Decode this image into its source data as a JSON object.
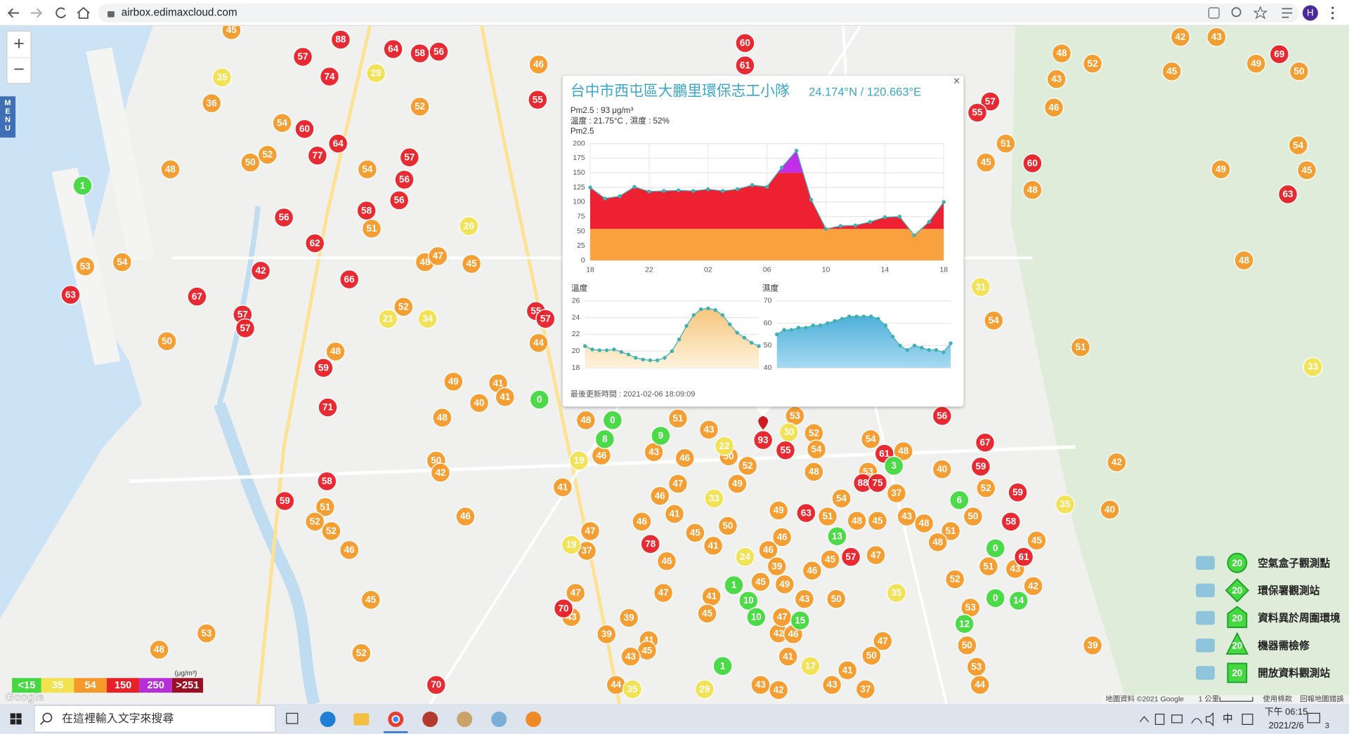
{
  "browser": {
    "url": "airbox.edimaxcloud.com",
    "profile": "H"
  },
  "map": {
    "menu": "MENU",
    "zoom_in": "+",
    "zoom_out": "−",
    "logo": "Google",
    "attribution": [
      "地圖資料 ©2021 Google",
      "1 公里",
      "使用條款",
      "回報地圖錯誤"
    ],
    "markers": [
      {
        "color": "#f59a2a",
        "values": [
          45,
          36,
          54,
          50,
          52,
          54,
          48,
          53,
          54,
          50,
          48,
          52,
          46,
          52,
          51,
          48,
          47,
          45,
          49,
          41,
          40,
          41,
          48,
          50,
          42,
          46,
          51,
          52,
          52,
          46,
          45,
          53,
          48,
          52,
          44,
          48,
          46,
          41,
          47,
          37,
          47,
          43,
          39,
          39,
          44,
          41,
          45,
          43,
          51,
          43,
          43,
          46,
          47,
          46,
          46,
          41,
          45,
          41,
          46,
          47,
          41,
          45,
          49,
          50,
          50,
          52,
          53,
          52,
          54,
          48,
          53,
          54,
          48,
          51,
          48,
          45,
          54,
          43,
          48,
          51,
          48,
          50,
          37,
          40,
          52,
          47,
          45,
          42,
          51,
          43,
          45,
          52,
          53,
          50,
          53,
          44,
          42,
          40,
          39,
          47,
          50,
          41,
          43,
          42,
          48,
          52,
          43,
          42,
          45,
          49,
          50,
          43,
          46,
          45,
          51,
          48,
          49,
          54,
          45,
          48,
          54,
          51,
          49,
          46,
          46,
          39,
          45,
          49,
          43,
          50,
          42,
          46,
          41,
          43,
          37,
          46,
          47
        ]
      },
      {
        "color": "#f2e250",
        "values": [
          35,
          29,
          26,
          21,
          34,
          19,
          19,
          24,
          33,
          22,
          30,
          31,
          35,
          33,
          35,
          29,
          17,
          35
        ]
      },
      {
        "color": "#e8202a",
        "values": [
          88,
          57,
          74,
          60,
          64,
          77,
          57,
          56,
          56,
          58,
          56,
          62,
          42,
          66,
          67,
          63,
          57,
          57,
          59,
          71,
          58,
          59,
          78,
          70,
          60,
          61,
          55,
          55,
          57,
          93,
          55,
          88,
          75,
          63,
          57,
          61,
          56,
          67,
          59,
          59,
          58,
          61,
          60,
          63,
          69,
          57,
          55,
          70,
          56,
          58,
          64
        ]
      },
      {
        "color": "#44d940",
        "values": [
          1,
          0,
          0,
          8,
          9,
          13,
          1,
          10,
          10,
          15,
          12,
          0,
          14,
          0,
          6,
          3,
          1
        ]
      }
    ]
  },
  "popup": {
    "title": "台中市西屯區大鵬里環保志工小隊",
    "coords": "24.174°N / 120.663°E",
    "pm_line": "Pm2.5 : 93 μg/m³",
    "temp_line": "溫度 : 21.75°C , 濕度 : 52%",
    "close": "×",
    "updated": "最後更新時間 : 2021-02-06 18:09:09",
    "pm_chart": {
      "type": "area",
      "label": "Pm2.5",
      "categories": [
        "18",
        null,
        null,
        null,
        "22",
        null,
        null,
        null,
        "02",
        null,
        null,
        null,
        "06",
        null,
        null,
        null,
        "10",
        null,
        null,
        null,
        "14",
        null,
        null,
        null,
        "18"
      ],
      "values": [
        125,
        106,
        110,
        126,
        118,
        119,
        120,
        119,
        122,
        119,
        122,
        129,
        126,
        159,
        188,
        104,
        54,
        59,
        60,
        66,
        74,
        75,
        43,
        66,
        100
      ],
      "ylim": [
        0,
        200
      ],
      "yticks": [
        0,
        25,
        50,
        75,
        100,
        125,
        150,
        175,
        200
      ],
      "band_breaks": [
        54,
        150
      ],
      "band_colors": [
        "#f9a03f",
        "#ee2133",
        "#c12ee6"
      ],
      "line_color": "#3fb0b3",
      "grid": true
    },
    "temp_chart": {
      "type": "area",
      "label": "溫度",
      "values": [
        20.6,
        20.2,
        20.1,
        20.1,
        20.2,
        19.9,
        19.6,
        19.2,
        19.0,
        18.9,
        18.9,
        19.2,
        20.0,
        21.4,
        23.0,
        24.3,
        25.0,
        25.1,
        24.9,
        24.3,
        23.2,
        22.2,
        21.6,
        21.0,
        20.6
      ],
      "ylim": [
        18,
        26
      ],
      "yticks": [
        18,
        20,
        22,
        24,
        26
      ],
      "gradient": [
        "#f6c57c",
        "#fdf3dc"
      ],
      "line_color": "#3fb0b3",
      "grid": true
    },
    "humidity_chart": {
      "type": "area",
      "label": "濕度",
      "values": [
        55,
        57,
        57,
        58,
        58,
        59,
        59,
        60,
        61,
        62,
        63,
        63,
        63,
        63,
        62,
        59,
        54,
        50,
        48,
        50,
        49,
        48,
        48,
        47,
        51
      ],
      "ylim": [
        40,
        70
      ],
      "yticks": [
        40,
        50,
        60,
        70
      ],
      "gradient": [
        "#4fb0da",
        "#a8daf0"
      ],
      "line_color": "#3fb0b3",
      "grid": true
    }
  },
  "scale": {
    "unit": "(μg/m³)",
    "items": [
      {
        "label": "<15",
        "color": "#44d940"
      },
      {
        "label": "35",
        "color": "#f2e250"
      },
      {
        "label": "54",
        "color": "#f59a2a"
      },
      {
        "label": "150",
        "color": "#e8202a"
      },
      {
        "label": "250",
        "color": "#b62fd6"
      },
      {
        "label": ">251",
        "color": "#9b0f22"
      }
    ]
  },
  "legend": {
    "items": [
      {
        "number": "20",
        "label": "空氣盒子觀測點"
      },
      {
        "number": "20",
        "label": "環保署觀測站"
      },
      {
        "number": "20",
        "label": "資料異於周圍環境"
      },
      {
        "number": "20",
        "label": "機器需檢修"
      },
      {
        "number": "20",
        "label": "開放資料觀測站"
      }
    ]
  },
  "taskbar": {
    "search": "在這裡輸入文字來搜尋",
    "ime": "中",
    "time": "下午 06:15",
    "date": "2021/2/6",
    "notifications": "3"
  }
}
